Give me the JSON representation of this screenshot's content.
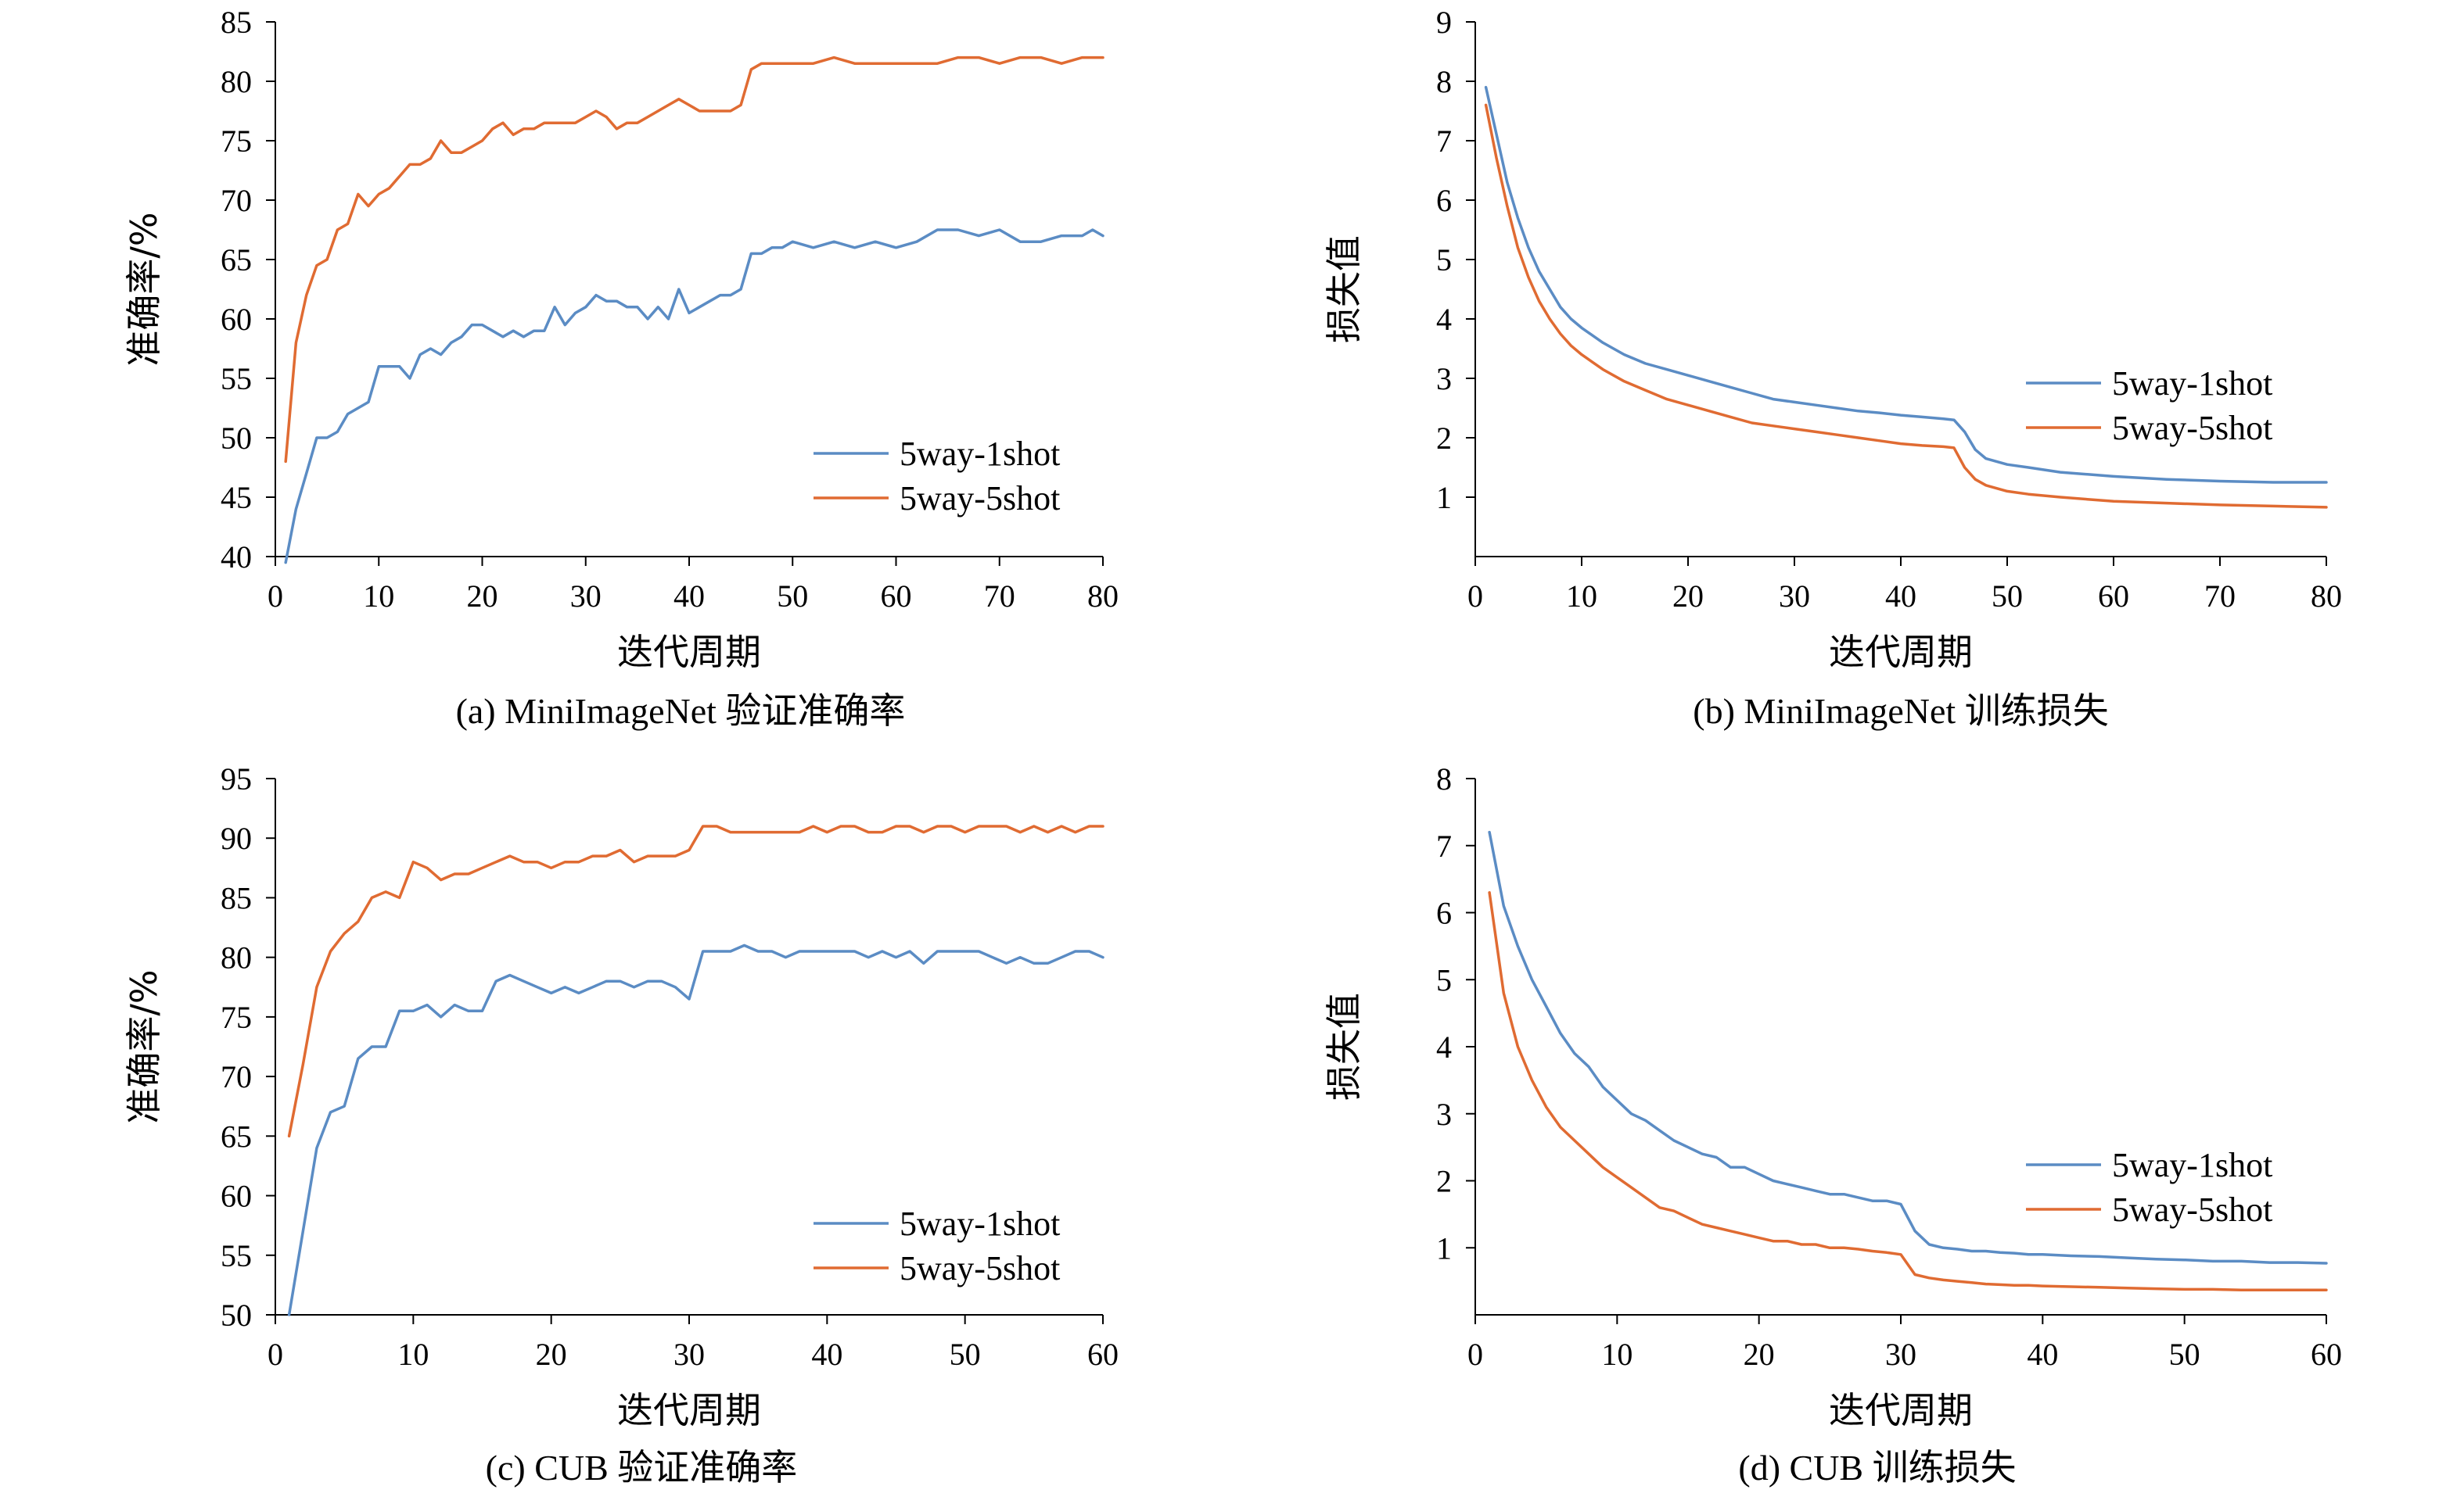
{
  "chart_data": [
    {
      "type": "line",
      "caption": "(a) MiniImageNet 验证准确率",
      "xlabel": "迭代周期",
      "ylabel": "准确率/%",
      "xlim": [
        0,
        80
      ],
      "ylim": [
        40,
        85
      ],
      "xticks": [
        0,
        10,
        20,
        30,
        40,
        50,
        60,
        70,
        80
      ],
      "yticks": [
        40,
        45,
        50,
        55,
        60,
        65,
        70,
        75,
        80,
        85
      ],
      "grid": false,
      "legend": "bottom-right",
      "series": [
        {
          "name": "5way-1shot",
          "color": "#5B8CC4",
          "x": [
            1,
            2,
            3,
            4,
            5,
            6,
            7,
            8,
            9,
            10,
            11,
            12,
            13,
            14,
            15,
            16,
            17,
            18,
            19,
            20,
            21,
            22,
            23,
            24,
            25,
            26,
            27,
            28,
            29,
            30,
            31,
            32,
            33,
            34,
            35,
            36,
            37,
            38,
            39,
            40,
            41,
            42,
            43,
            44,
            45,
            46,
            47,
            48,
            49,
            50,
            52,
            54,
            56,
            58,
            60,
            62,
            64,
            66,
            68,
            70,
            72,
            74,
            76,
            78,
            79,
            80
          ],
          "y": [
            39.5,
            44,
            47,
            50,
            50,
            50.5,
            52,
            52.5,
            53,
            56,
            56,
            56,
            55,
            57,
            57.5,
            57,
            58,
            58.5,
            59.5,
            59.5,
            59,
            58.5,
            59,
            58.5,
            59,
            59,
            61,
            59.5,
            60.5,
            61,
            62,
            61.5,
            61.5,
            61,
            61,
            60,
            61,
            60,
            62.5,
            60.5,
            61,
            61.5,
            62,
            62,
            62.5,
            65.5,
            65.5,
            66,
            66,
            66.5,
            66,
            66.5,
            66,
            66.5,
            66,
            66.5,
            67.5,
            67.5,
            67,
            67.5,
            66.5,
            66.5,
            67,
            67,
            67.5,
            67
          ]
        },
        {
          "name": "5way-5shot",
          "color": "#E06B32",
          "x": [
            1,
            2,
            3,
            4,
            5,
            6,
            7,
            8,
            9,
            10,
            11,
            12,
            13,
            14,
            15,
            16,
            17,
            18,
            19,
            20,
            21,
            22,
            23,
            24,
            25,
            26,
            27,
            28,
            29,
            30,
            31,
            32,
            33,
            34,
            35,
            36,
            37,
            38,
            39,
            40,
            41,
            42,
            43,
            44,
            45,
            46,
            47,
            48,
            49,
            50,
            52,
            54,
            56,
            58,
            60,
            62,
            64,
            66,
            68,
            70,
            72,
            74,
            76,
            78,
            79,
            80
          ],
          "y": [
            48,
            58,
            62,
            64.5,
            65,
            67.5,
            68,
            70.5,
            69.5,
            70.5,
            71,
            72,
            73,
            73,
            73.5,
            75,
            74,
            74,
            74.5,
            75,
            76,
            76.5,
            75.5,
            76,
            76,
            76.5,
            76.5,
            76.5,
            76.5,
            77,
            77.5,
            77,
            76,
            76.5,
            76.5,
            77,
            77.5,
            78,
            78.5,
            78,
            77.5,
            77.5,
            77.5,
            77.5,
            78,
            81,
            81.5,
            81.5,
            81.5,
            81.5,
            81.5,
            82,
            81.5,
            81.5,
            81.5,
            81.5,
            81.5,
            82,
            82,
            81.5,
            82,
            82,
            81.5,
            82,
            82,
            82
          ]
        }
      ]
    },
    {
      "type": "line",
      "caption": "(b) MiniImageNet 训练损失",
      "xlabel": "迭代周期",
      "ylabel": "损失值",
      "xlim": [
        0,
        80
      ],
      "ylim": [
        0,
        9
      ],
      "xticks": [
        0,
        10,
        20,
        30,
        40,
        50,
        60,
        70,
        80
      ],
      "yticks": [
        1,
        2,
        3,
        4,
        5,
        6,
        7,
        8,
        9
      ],
      "grid": false,
      "legend": "middle-right",
      "series": [
        {
          "name": "5way-1shot",
          "color": "#5B8CC4",
          "x": [
            1,
            2,
            3,
            4,
            5,
            6,
            7,
            8,
            9,
            10,
            12,
            14,
            16,
            18,
            20,
            22,
            24,
            26,
            28,
            30,
            32,
            34,
            36,
            38,
            40,
            42,
            44,
            45,
            46,
            47,
            48,
            50,
            52,
            55,
            60,
            65,
            70,
            75,
            80
          ],
          "y": [
            7.9,
            7.1,
            6.3,
            5.7,
            5.2,
            4.8,
            4.5,
            4.2,
            4,
            3.85,
            3.6,
            3.4,
            3.25,
            3.15,
            3.05,
            2.95,
            2.85,
            2.75,
            2.65,
            2.6,
            2.55,
            2.5,
            2.45,
            2.42,
            2.38,
            2.35,
            2.32,
            2.3,
            2.1,
            1.8,
            1.65,
            1.55,
            1.5,
            1.42,
            1.35,
            1.3,
            1.27,
            1.25,
            1.25
          ]
        },
        {
          "name": "5way-5shot",
          "color": "#E06B32",
          "x": [
            1,
            2,
            3,
            4,
            5,
            6,
            7,
            8,
            9,
            10,
            12,
            14,
            16,
            18,
            20,
            22,
            24,
            26,
            28,
            30,
            32,
            34,
            36,
            38,
            40,
            42,
            44,
            45,
            46,
            47,
            48,
            50,
            52,
            55,
            60,
            65,
            70,
            75,
            80
          ],
          "y": [
            7.6,
            6.7,
            5.9,
            5.2,
            4.7,
            4.3,
            4,
            3.75,
            3.55,
            3.4,
            3.15,
            2.95,
            2.8,
            2.65,
            2.55,
            2.45,
            2.35,
            2.25,
            2.2,
            2.15,
            2.1,
            2.05,
            2,
            1.95,
            1.9,
            1.87,
            1.85,
            1.83,
            1.5,
            1.3,
            1.2,
            1.1,
            1.05,
            1,
            0.93,
            0.9,
            0.87,
            0.85,
            0.83
          ]
        }
      ]
    },
    {
      "type": "line",
      "caption": "(c) CUB 验证准确率",
      "xlabel": "迭代周期",
      "ylabel": "准确率/%",
      "xlim": [
        0,
        60
      ],
      "ylim": [
        50,
        95
      ],
      "xticks": [
        0,
        10,
        20,
        30,
        40,
        50,
        60
      ],
      "yticks": [
        50,
        55,
        60,
        65,
        70,
        75,
        80,
        85,
        90,
        95
      ],
      "grid": false,
      "legend": "bottom-right",
      "series": [
        {
          "name": "5way-1shot",
          "color": "#5B8CC4",
          "x": [
            1,
            2,
            3,
            4,
            5,
            6,
            7,
            8,
            9,
            10,
            11,
            12,
            13,
            14,
            15,
            16,
            17,
            18,
            19,
            20,
            21,
            22,
            23,
            24,
            25,
            26,
            27,
            28,
            29,
            30,
            31,
            32,
            33,
            34,
            35,
            36,
            37,
            38,
            39,
            40,
            41,
            42,
            43,
            44,
            45,
            46,
            47,
            48,
            49,
            50,
            51,
            52,
            53,
            54,
            55,
            56,
            57,
            58,
            59,
            60
          ],
          "y": [
            50,
            57,
            64,
            67,
            67.5,
            71.5,
            72.5,
            72.5,
            75.5,
            75.5,
            76,
            75,
            76,
            75.5,
            75.5,
            78,
            78.5,
            78,
            77.5,
            77,
            77.5,
            77,
            77.5,
            78,
            78,
            77.5,
            78,
            78,
            77.5,
            76.5,
            80.5,
            80.5,
            80.5,
            81,
            80.5,
            80.5,
            80,
            80.5,
            80.5,
            80.5,
            80.5,
            80.5,
            80,
            80.5,
            80,
            80.5,
            79.5,
            80.5,
            80.5,
            80.5,
            80.5,
            80,
            79.5,
            80,
            79.5,
            79.5,
            80,
            80.5,
            80.5,
            80
          ]
        },
        {
          "name": "5way-5shot",
          "color": "#E06B32",
          "x": [
            1,
            2,
            3,
            4,
            5,
            6,
            7,
            8,
            9,
            10,
            11,
            12,
            13,
            14,
            15,
            16,
            17,
            18,
            19,
            20,
            21,
            22,
            23,
            24,
            25,
            26,
            27,
            28,
            29,
            30,
            31,
            32,
            33,
            34,
            35,
            36,
            37,
            38,
            39,
            40,
            41,
            42,
            43,
            44,
            45,
            46,
            47,
            48,
            49,
            50,
            51,
            52,
            53,
            54,
            55,
            56,
            57,
            58,
            59,
            60
          ],
          "y": [
            65,
            71,
            77.5,
            80.5,
            82,
            83,
            85,
            85.5,
            85,
            88,
            87.5,
            86.5,
            87,
            87,
            87.5,
            88,
            88.5,
            88,
            88,
            87.5,
            88,
            88,
            88.5,
            88.5,
            89,
            88,
            88.5,
            88.5,
            88.5,
            89,
            91,
            91,
            90.5,
            90.5,
            90.5,
            90.5,
            90.5,
            90.5,
            91,
            90.5,
            91,
            91,
            90.5,
            90.5,
            91,
            91,
            90.5,
            91,
            91,
            90.5,
            91,
            91,
            91,
            90.5,
            91,
            90.5,
            91,
            90.5,
            91,
            91
          ]
        }
      ]
    },
    {
      "type": "line",
      "caption": "(d) CUB 训练损失",
      "xlabel": "迭代周期",
      "ylabel": "损失值",
      "xlim": [
        0,
        60
      ],
      "ylim": [
        0,
        8
      ],
      "xticks": [
        0,
        10,
        20,
        30,
        40,
        50,
        60
      ],
      "yticks": [
        1,
        2,
        3,
        4,
        5,
        6,
        7,
        8
      ],
      "grid": false,
      "legend": "middle-right",
      "series": [
        {
          "name": "5way-1shot",
          "color": "#5B8CC4",
          "x": [
            1,
            2,
            3,
            4,
            5,
            6,
            7,
            8,
            9,
            10,
            11,
            12,
            13,
            14,
            15,
            16,
            17,
            18,
            19,
            20,
            21,
            22,
            23,
            24,
            25,
            26,
            27,
            28,
            29,
            30,
            31,
            32,
            33,
            34,
            35,
            36,
            37,
            38,
            39,
            40,
            42,
            44,
            46,
            48,
            50,
            52,
            54,
            56,
            58,
            60
          ],
          "y": [
            7.2,
            6.1,
            5.5,
            5,
            4.6,
            4.2,
            3.9,
            3.7,
            3.4,
            3.2,
            3,
            2.9,
            2.75,
            2.6,
            2.5,
            2.4,
            2.35,
            2.2,
            2.2,
            2.1,
            2,
            1.95,
            1.9,
            1.85,
            1.8,
            1.8,
            1.75,
            1.7,
            1.7,
            1.65,
            1.25,
            1.05,
            1,
            0.98,
            0.95,
            0.95,
            0.93,
            0.92,
            0.9,
            0.9,
            0.88,
            0.87,
            0.85,
            0.83,
            0.82,
            0.8,
            0.8,
            0.78,
            0.78,
            0.77
          ]
        },
        {
          "name": "5way-5shot",
          "color": "#E06B32",
          "x": [
            1,
            2,
            3,
            4,
            5,
            6,
            7,
            8,
            9,
            10,
            11,
            12,
            13,
            14,
            15,
            16,
            17,
            18,
            19,
            20,
            21,
            22,
            23,
            24,
            25,
            26,
            27,
            28,
            29,
            30,
            31,
            32,
            33,
            34,
            35,
            36,
            37,
            38,
            39,
            40,
            42,
            44,
            46,
            48,
            50,
            52,
            54,
            56,
            58,
            60
          ],
          "y": [
            6.3,
            4.8,
            4,
            3.5,
            3.1,
            2.8,
            2.6,
            2.4,
            2.2,
            2.05,
            1.9,
            1.75,
            1.6,
            1.55,
            1.45,
            1.35,
            1.3,
            1.25,
            1.2,
            1.15,
            1.1,
            1.1,
            1.05,
            1.05,
            1,
            1,
            0.98,
            0.95,
            0.93,
            0.9,
            0.6,
            0.55,
            0.52,
            0.5,
            0.48,
            0.46,
            0.45,
            0.44,
            0.44,
            0.43,
            0.42,
            0.41,
            0.4,
            0.39,
            0.38,
            0.38,
            0.37,
            0.37,
            0.37,
            0.37
          ]
        }
      ]
    }
  ]
}
